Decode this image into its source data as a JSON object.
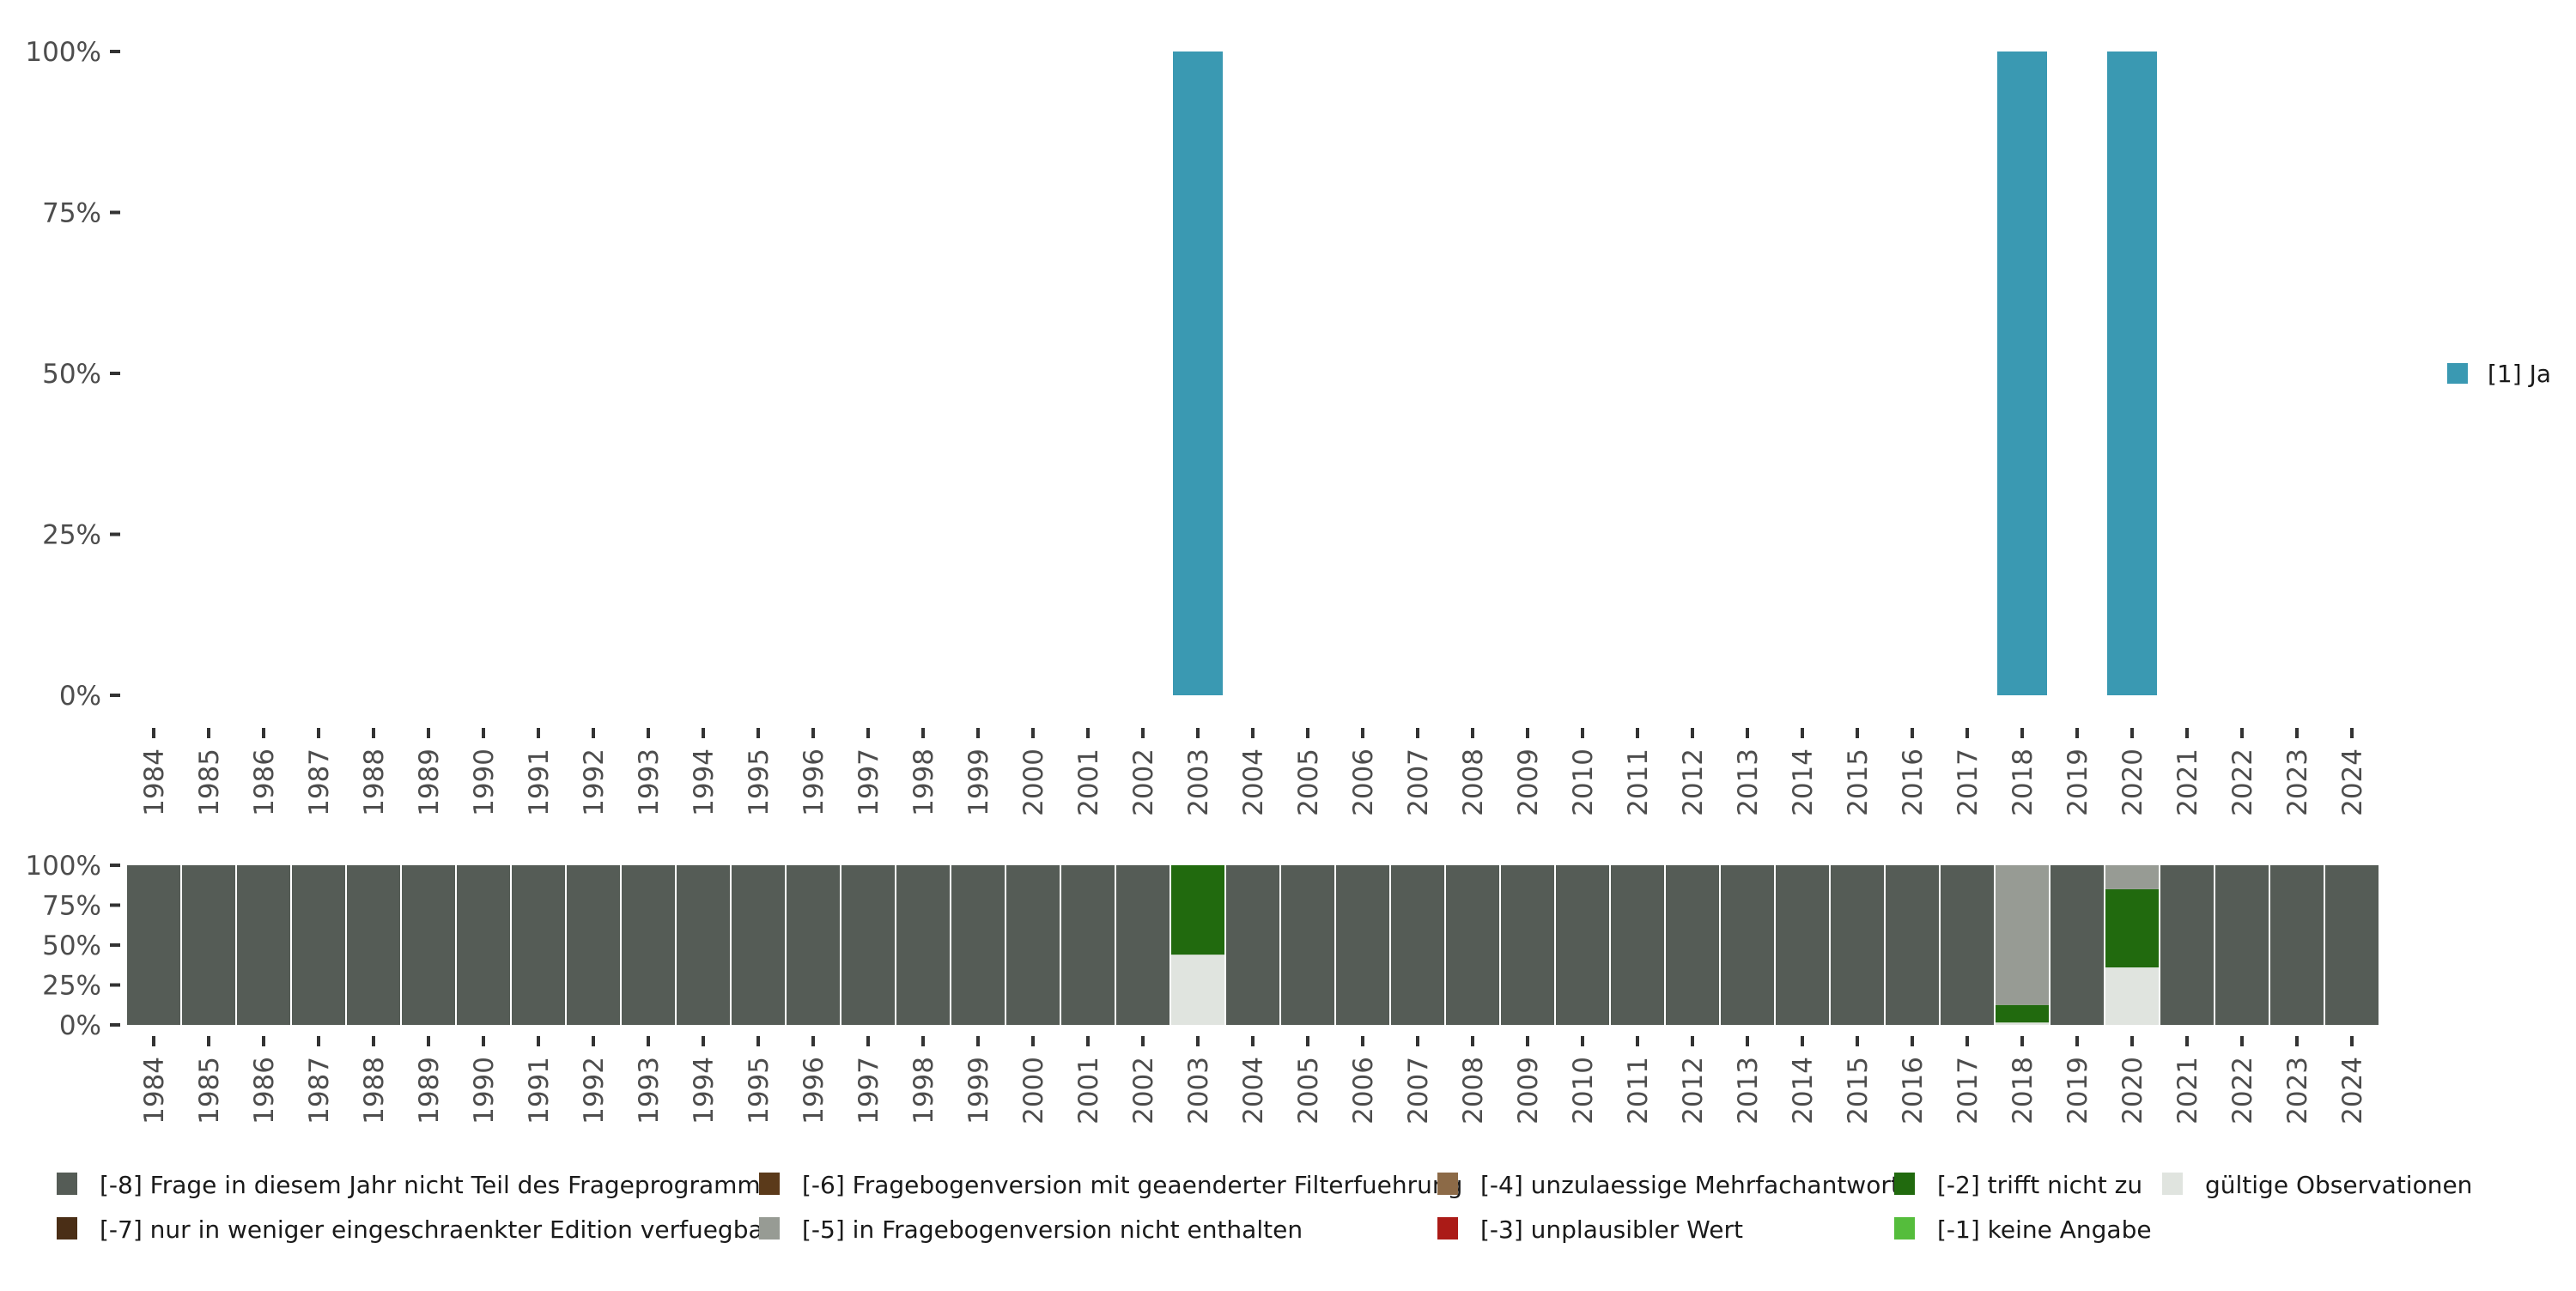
{
  "chart_data": [
    {
      "type": "bar",
      "title": "",
      "xlabel": "",
      "ylabel": "",
      "ylim": [
        0,
        1
      ],
      "yticks": [
        "0%",
        "25%",
        "50%",
        "75%",
        "100%"
      ],
      "categories": [
        "1984",
        "1985",
        "1986",
        "1987",
        "1988",
        "1989",
        "1990",
        "1991",
        "1992",
        "1993",
        "1994",
        "1995",
        "1996",
        "1997",
        "1998",
        "1999",
        "2000",
        "2001",
        "2002",
        "2003",
        "2004",
        "2005",
        "2006",
        "2007",
        "2008",
        "2009",
        "2010",
        "2011",
        "2012",
        "2013",
        "2014",
        "2015",
        "2016",
        "2017",
        "2018",
        "2019",
        "2020",
        "2021",
        "2022",
        "2023",
        "2024"
      ],
      "series": [
        {
          "name": "[1] Ja",
          "color": "#3a99b2",
          "values": {
            "2003": 1.0,
            "2018": 1.0,
            "2020": 1.0
          }
        }
      ],
      "legend": "right"
    },
    {
      "type": "bar",
      "stacked": true,
      "ylim": [
        0,
        1
      ],
      "yticks": [
        "0%",
        "25%",
        "50%",
        "75%",
        "100%"
      ],
      "categories": [
        "1984",
        "1985",
        "1986",
        "1987",
        "1988",
        "1989",
        "1990",
        "1991",
        "1992",
        "1993",
        "1994",
        "1995",
        "1996",
        "1997",
        "1998",
        "1999",
        "2000",
        "2001",
        "2002",
        "2003",
        "2004",
        "2005",
        "2006",
        "2007",
        "2008",
        "2009",
        "2010",
        "2011",
        "2012",
        "2013",
        "2014",
        "2015",
        "2016",
        "2017",
        "2018",
        "2019",
        "2020",
        "2021",
        "2022",
        "2023",
        "2024"
      ],
      "default_stack": {
        "[-8] Frage in diesem Jahr nicht Teil des Frageprogramms": 1.0
      },
      "stacks": {
        "2003": {
          "gültige Observationen": 0.44,
          "[-2] trifft nicht zu": 0.56
        },
        "2018": {
          "gültige Observationen": 0.015,
          "[-2] trifft nicht zu": 0.11,
          "[-5] in Fragebogenversion nicht enthalten": 0.875
        },
        "2020": {
          "gültige Observationen": 0.36,
          "[-2] trifft nicht zu": 0.49,
          "[-5] in Fragebogenversion nicht enthalten": 0.15
        }
      },
      "stack_order": [
        "gültige Observationen",
        "[-1] keine Angabe",
        "[-2] trifft nicht zu",
        "[-3] unplausibler Wert",
        "[-4] unzulaessige Mehrfachantwort",
        "[-5] in Fragebogenversion nicht enthalten",
        "[-6] Fragebogenversion mit geaenderter Filterfuehrung",
        "[-7] nur in weniger eingeschraenkter Edition verfuegbar",
        "[-8] Frage in diesem Jahr nicht Teil des Frageprogramms"
      ],
      "legend": "bottom",
      "legend_items": [
        {
          "label": "[-8] Frage in diesem Jahr nicht Teil des Frageprogramms",
          "color": "#555c56"
        },
        {
          "label": "[-7] nur in weniger eingeschraenkter Edition verfuegbar",
          "color": "#4a2e16"
        },
        {
          "label": "[-6] Fragebogenversion mit geaenderter Filterfuehrung",
          "color": "#5b3a1a"
        },
        {
          "label": "[-5] in Fragebogenversion nicht enthalten",
          "color": "#979b94"
        },
        {
          "label": "[-4] unzulaessige Mehrfachantwort",
          "color": "#8c6a47"
        },
        {
          "label": "[-3] unplausibler Wert",
          "color": "#ab1b17"
        },
        {
          "label": "[-2] trifft nicht zu",
          "color": "#216a0e"
        },
        {
          "label": "[-1] keine Angabe",
          "color": "#55bd3c"
        },
        {
          "label": "gültige Observationen",
          "color": "#e0e4df"
        }
      ]
    }
  ]
}
